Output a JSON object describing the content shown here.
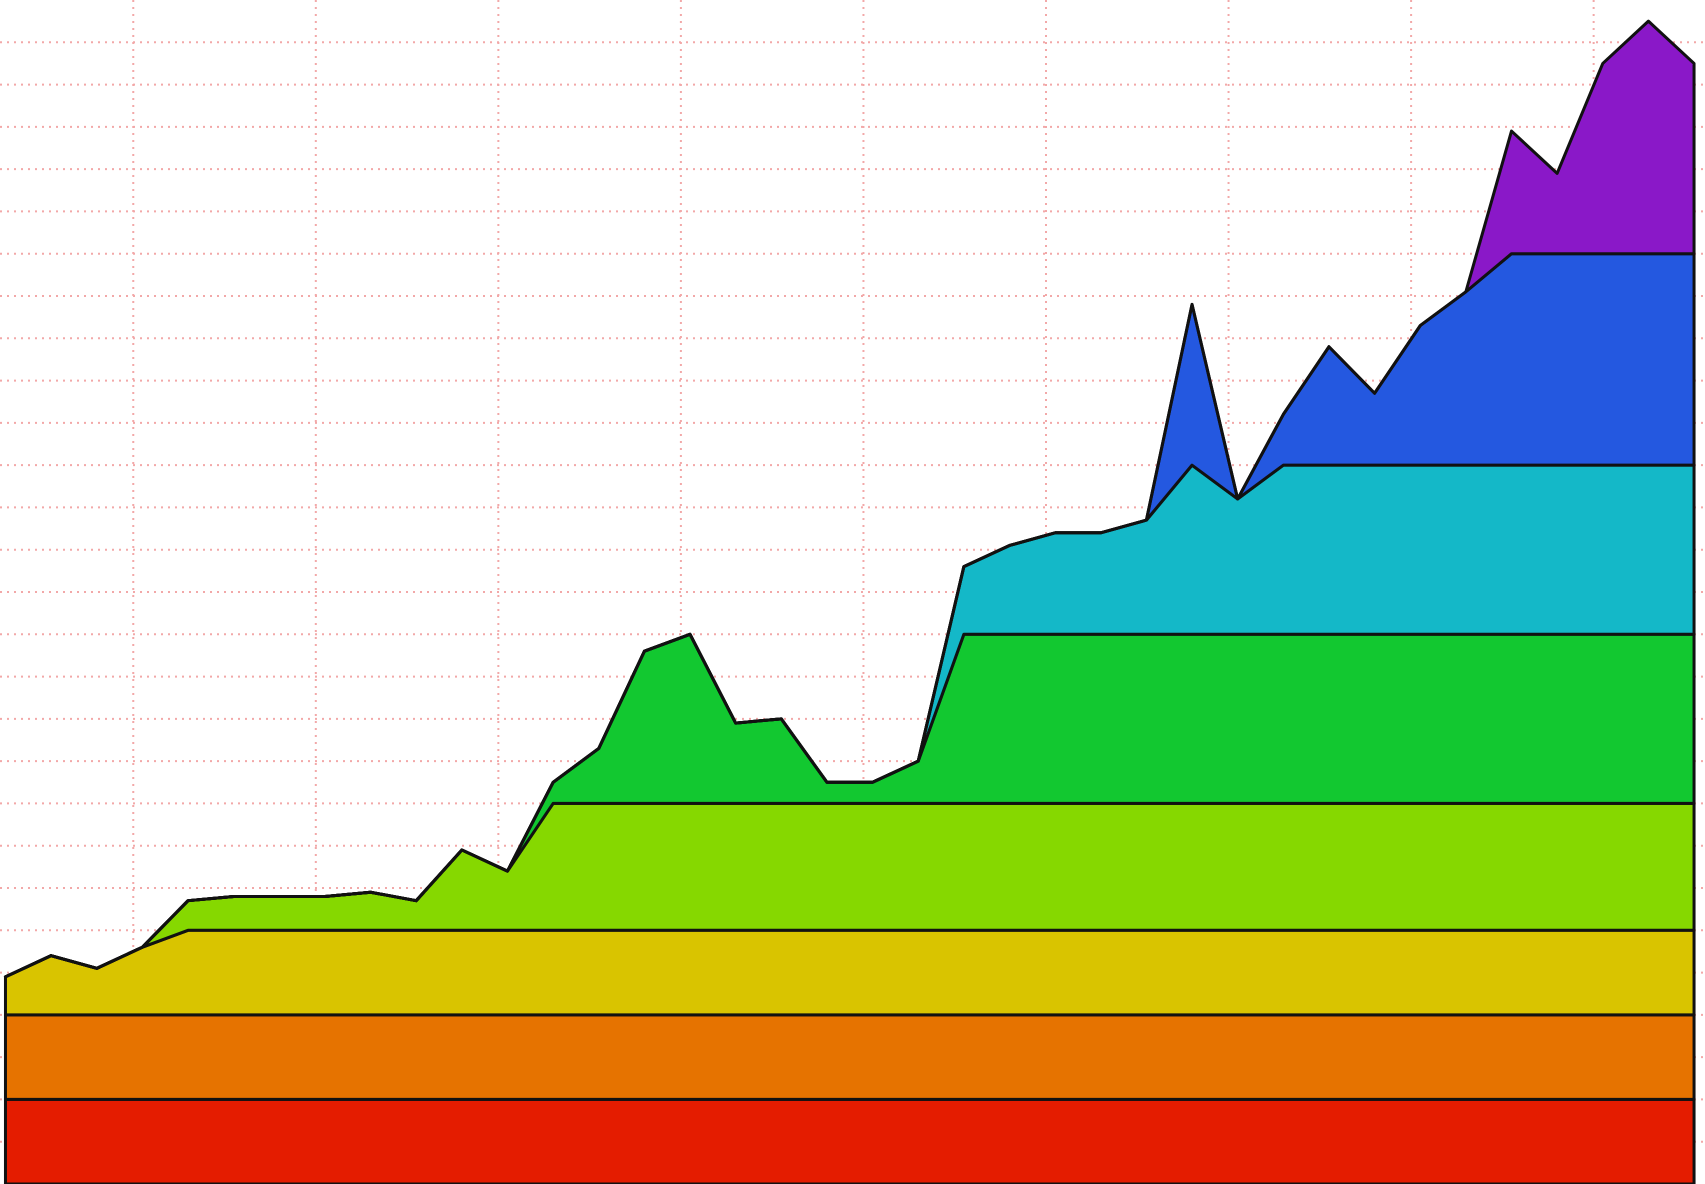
{
  "chart_data": {
    "type": "stacked-area",
    "x": [
      -0.7,
      -0.45,
      -0.2,
      0.05,
      0.3,
      0.55,
      0.8,
      1.05,
      1.3,
      1.55,
      1.8,
      2.05,
      2.3,
      2.55,
      2.8,
      3.05,
      3.3,
      3.55,
      3.8,
      4.05,
      4.3,
      4.55,
      4.8,
      5.05,
      5.3,
      5.55,
      5.8,
      6.05,
      6.3,
      6.55,
      6.8,
      7.05,
      7.3,
      7.55,
      7.8,
      8.05,
      8.3,
      8.55
    ],
    "xlim": [
      -0.73,
      8.61
    ],
    "xticks": [
      0,
      1,
      2,
      3,
      4,
      5,
      6,
      7,
      8
    ],
    "ylim": [
      0,
      28
    ],
    "yticks": [
      1,
      2,
      3,
      4,
      5,
      6,
      7,
      8,
      9,
      10,
      11,
      12,
      13,
      14,
      15,
      16,
      17,
      18,
      19,
      20,
      21,
      22,
      23,
      24,
      25,
      26,
      27
    ],
    "grid": true,
    "grid_color": "#f2a8a8",
    "background": "#ffffff",
    "series": [
      {
        "color": "#e41c00",
        "values": [
          2,
          2,
          2,
          2,
          2,
          2,
          2,
          2,
          2,
          2,
          2,
          2,
          2,
          2,
          2,
          2,
          2,
          2,
          2,
          2,
          2,
          2,
          2,
          2,
          2,
          2,
          2,
          2,
          2,
          2,
          2,
          2,
          2,
          2,
          2,
          2,
          2,
          2
        ]
      },
      {
        "color": "#e67300",
        "values": [
          2,
          2,
          2,
          2,
          2,
          2,
          2,
          2,
          2,
          2,
          2,
          2,
          2,
          2,
          2,
          2,
          2,
          2,
          2,
          2,
          2,
          2,
          2,
          2,
          2,
          2,
          2,
          2,
          2,
          2,
          2,
          2,
          2,
          2,
          2,
          2,
          2,
          2
        ]
      },
      {
        "color": "#d9c400",
        "values": [
          0.9,
          1.4,
          1.1,
          1.6,
          2,
          2,
          2,
          2,
          2,
          2,
          2,
          2,
          2,
          2,
          2,
          2,
          2,
          2,
          2,
          2,
          2,
          2,
          2,
          2,
          2,
          2,
          2,
          2,
          2,
          2,
          2,
          2,
          2,
          2,
          2,
          2,
          2,
          2
        ]
      },
      {
        "color": "#86d800",
        "values": [
          0,
          0,
          0,
          0,
          0.7,
          0.8,
          0.8,
          0.8,
          0.9,
          0.7,
          1.9,
          1.4,
          3,
          3,
          3,
          3,
          3,
          3,
          3,
          3,
          3,
          3,
          3,
          3,
          3,
          3,
          3,
          3,
          3,
          3,
          3,
          3,
          3,
          3,
          3,
          3,
          3,
          3
        ]
      },
      {
        "color": "#12c830",
        "values": [
          0,
          0,
          0,
          0,
          0,
          0,
          0,
          0,
          0,
          0,
          0,
          0,
          0.5,
          1.3,
          3.6,
          4,
          1.9,
          2,
          0.5,
          0.5,
          1,
          4,
          4,
          4,
          4,
          4,
          4,
          4,
          4,
          4,
          4,
          4,
          4,
          4,
          4,
          4,
          4,
          4
        ]
      },
      {
        "color": "#14b8c8",
        "values": [
          0,
          0,
          0,
          0,
          0,
          0,
          0,
          0,
          0,
          0,
          0,
          0,
          0,
          0,
          0,
          0,
          0,
          0,
          0,
          0,
          0,
          1.6,
          2.1,
          2.4,
          2.4,
          2.7,
          4,
          3.2,
          4,
          4,
          4,
          4,
          4,
          4,
          4,
          4,
          4,
          4
        ]
      },
      {
        "color": "#2458e0",
        "values": [
          0,
          0,
          0,
          0,
          0,
          0,
          0,
          0,
          0,
          0,
          0,
          0,
          0,
          0,
          0,
          0,
          0,
          0,
          0,
          0,
          0,
          0,
          0,
          0,
          0,
          0,
          3.8,
          0,
          1.2,
          2.8,
          1.7,
          3.3,
          4.1,
          5,
          5,
          5,
          5,
          5
        ]
      },
      {
        "color": "#8a18c8",
        "values": [
          0,
          0,
          0,
          0,
          0,
          0,
          0,
          0,
          0,
          0,
          0,
          0,
          0,
          0,
          0,
          0,
          0,
          0,
          0,
          0,
          0,
          0,
          0,
          0,
          0,
          0,
          0,
          0,
          0,
          0,
          0,
          0,
          0,
          2.9,
          1.9,
          4.5,
          5.5,
          4.5
        ]
      }
    ]
  }
}
